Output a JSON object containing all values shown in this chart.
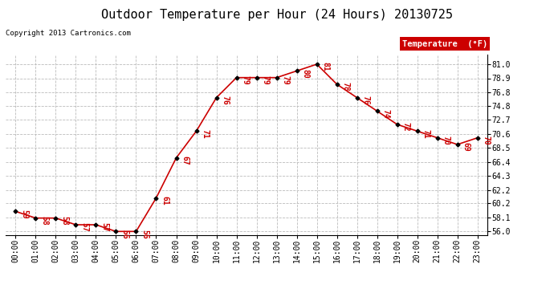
{
  "title": "Outdoor Temperature per Hour (24 Hours) 20130725",
  "copyright": "Copyright 2013 Cartronics.com",
  "legend_label": "Temperature  (°F)",
  "hours": [
    0,
    1,
    2,
    3,
    4,
    5,
    6,
    7,
    8,
    9,
    10,
    11,
    12,
    13,
    14,
    15,
    16,
    17,
    18,
    19,
    20,
    21,
    22,
    23
  ],
  "temps": [
    59,
    58,
    58,
    57,
    57,
    56,
    56,
    61,
    67,
    71,
    76,
    79,
    79,
    79,
    80,
    81,
    78,
    76,
    74,
    72,
    71,
    70,
    69,
    70
  ],
  "x_labels": [
    "00:00",
    "01:00",
    "02:00",
    "03:00",
    "04:00",
    "05:00",
    "06:00",
    "07:00",
    "08:00",
    "09:00",
    "10:00",
    "11:00",
    "12:00",
    "13:00",
    "14:00",
    "15:00",
    "16:00",
    "17:00",
    "18:00",
    "19:00",
    "20:00",
    "21:00",
    "22:00",
    "23:00"
  ],
  "y_ticks": [
    56.0,
    58.1,
    60.2,
    62.2,
    64.3,
    66.4,
    68.5,
    70.6,
    72.7,
    74.8,
    76.8,
    78.9,
    81.0
  ],
  "line_color": "#cc0000",
  "marker_color": "#000000",
  "bg_color": "#ffffff",
  "grid_color": "#bbbbbb",
  "title_fontsize": 11,
  "label_fontsize": 7,
  "annot_fontsize": 7,
  "legend_bg": "#cc0000",
  "legend_text_color": "#ffffff",
  "ylim_min": 55.5,
  "ylim_max": 82.5
}
